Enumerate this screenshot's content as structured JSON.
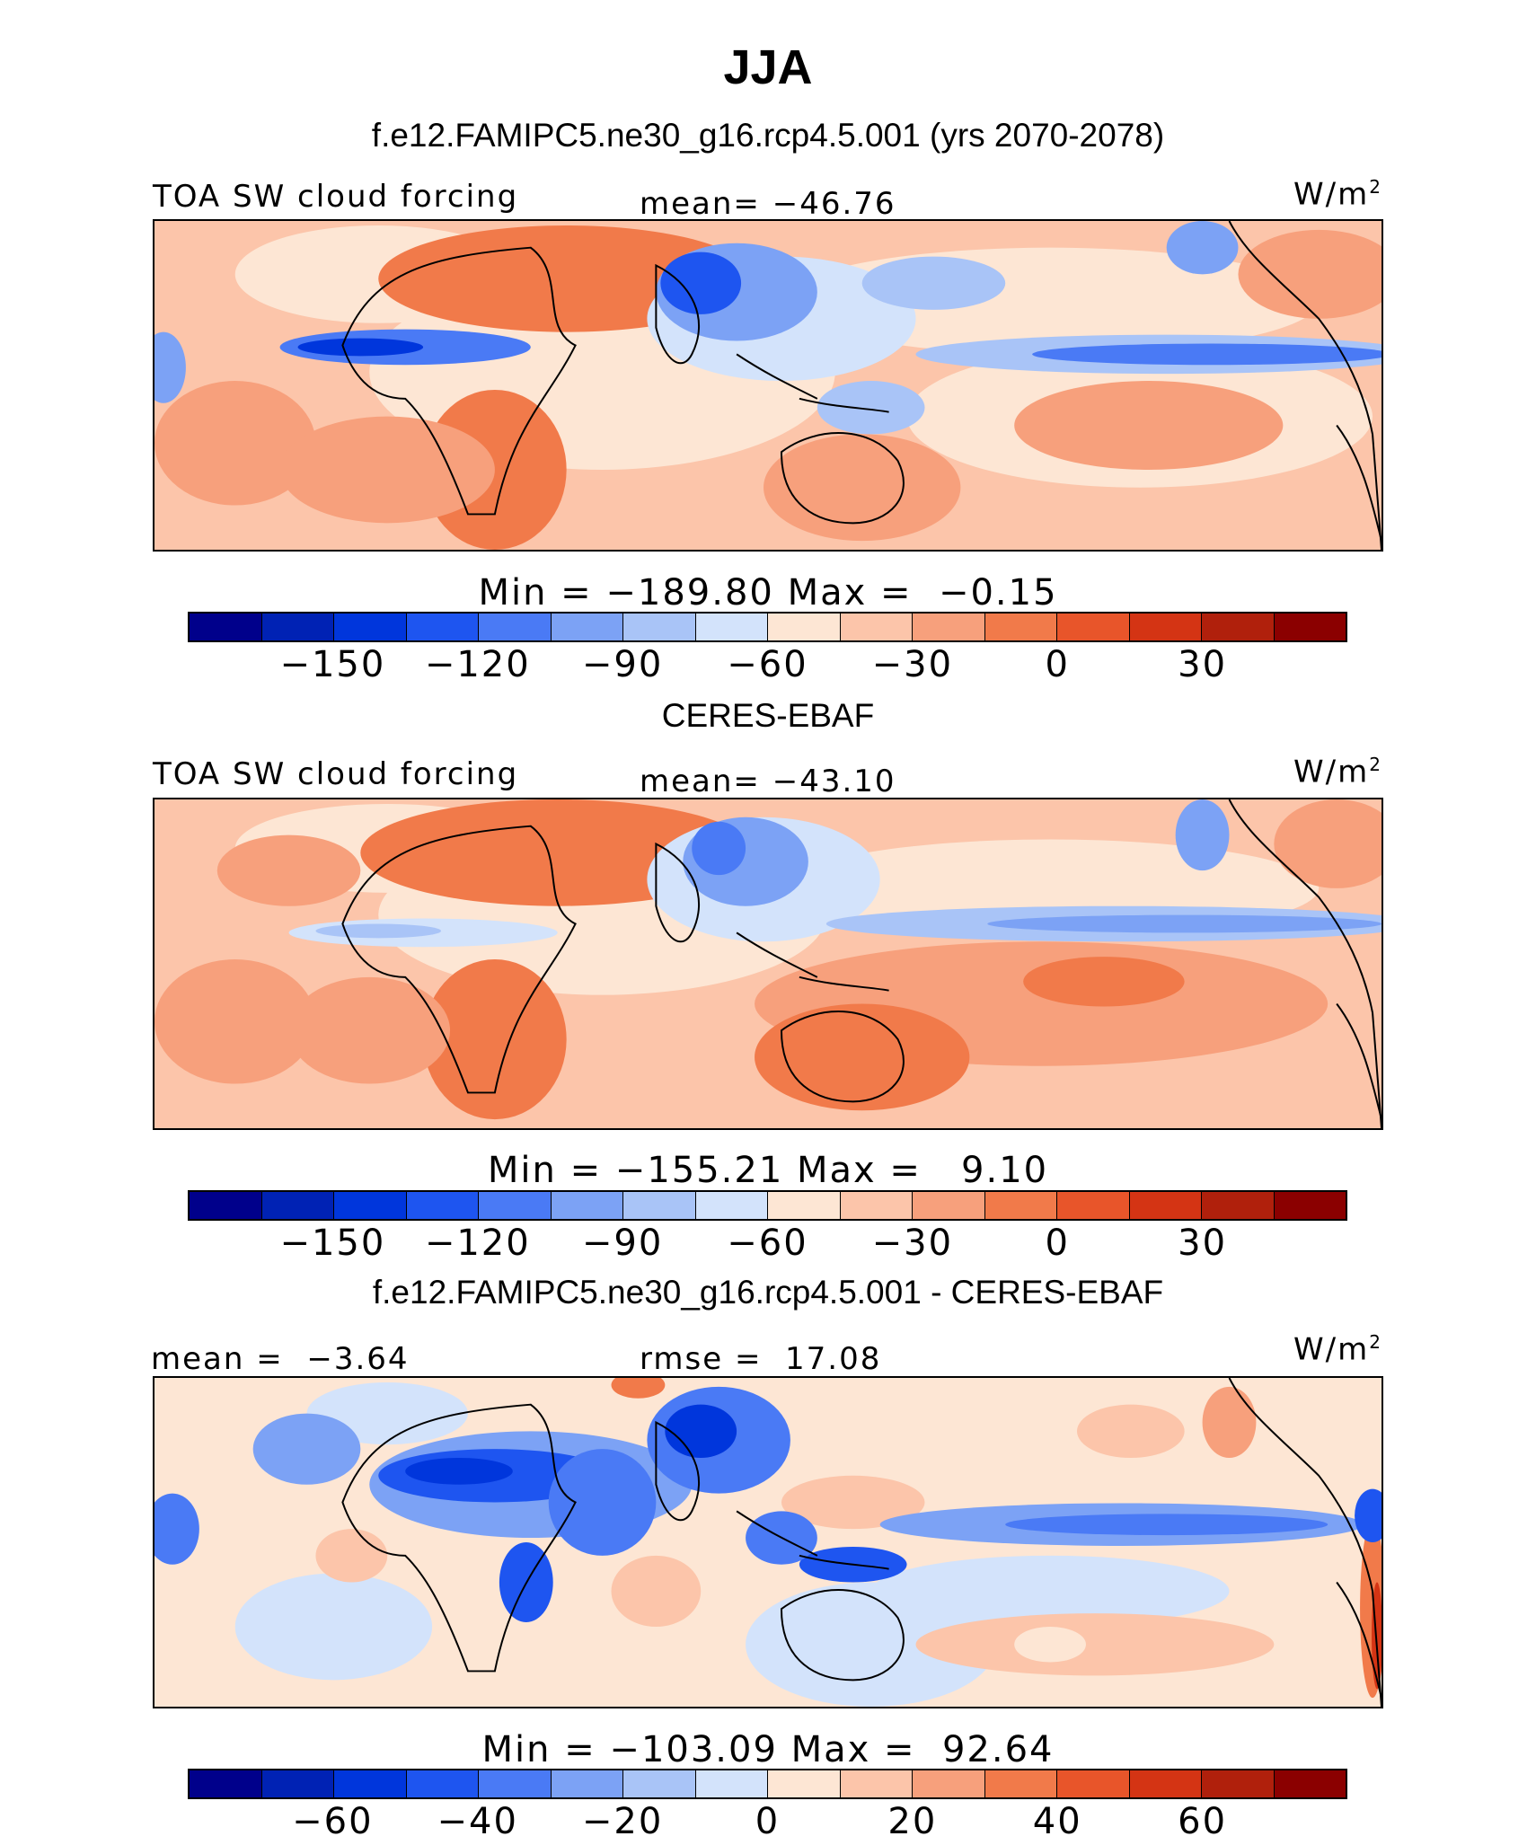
{
  "title": "JJA",
  "palette": [
    "#00008b",
    "#0022b4",
    "#0036dc",
    "#1e55f0",
    "#4a7af5",
    "#7ca2f5",
    "#a9c4f7",
    "#d3e3fb",
    "#fde6d4",
    "#fcc5aa",
    "#f7a07c",
    "#f17a4a",
    "#e8552a",
    "#d43414",
    "#b0200c",
    "#8b0000"
  ],
  "panels": [
    {
      "heading": "f.e12.FAMIPC5.ne30_g16.rcp4.5.001 (yrs 2070-2078)",
      "left_label": "TOA SW cloud forcing",
      "center_label": "mean= −46.76",
      "units": "W/m",
      "units_exp": "2",
      "minmax": "Min = −189.80 Max =  −0.15",
      "ticks": [
        "−150",
        "−120",
        "−90",
        "−60",
        "−30",
        "0",
        "30"
      ]
    },
    {
      "heading": "CERES-EBAF",
      "left_label": "TOA SW cloud forcing",
      "center_label": "mean= −43.10",
      "units": "W/m",
      "units_exp": "2",
      "minmax": "Min = −155.21 Max =   9.10",
      "ticks": [
        "−150",
        "−120",
        "−90",
        "−60",
        "−30",
        "0",
        "30"
      ]
    },
    {
      "heading": "f.e12.FAMIPC5.ne30_g16.rcp4.5.001 - CERES-EBAF",
      "left_label": "mean =  −3.64",
      "center_label": "rmse =  17.08",
      "units": "W/m",
      "units_exp": "2",
      "minmax": "Min = −103.09 Max =  92.64",
      "ticks": [
        "−60",
        "−40",
        "−20",
        "0",
        "20",
        "40",
        "60"
      ]
    }
  ]
}
